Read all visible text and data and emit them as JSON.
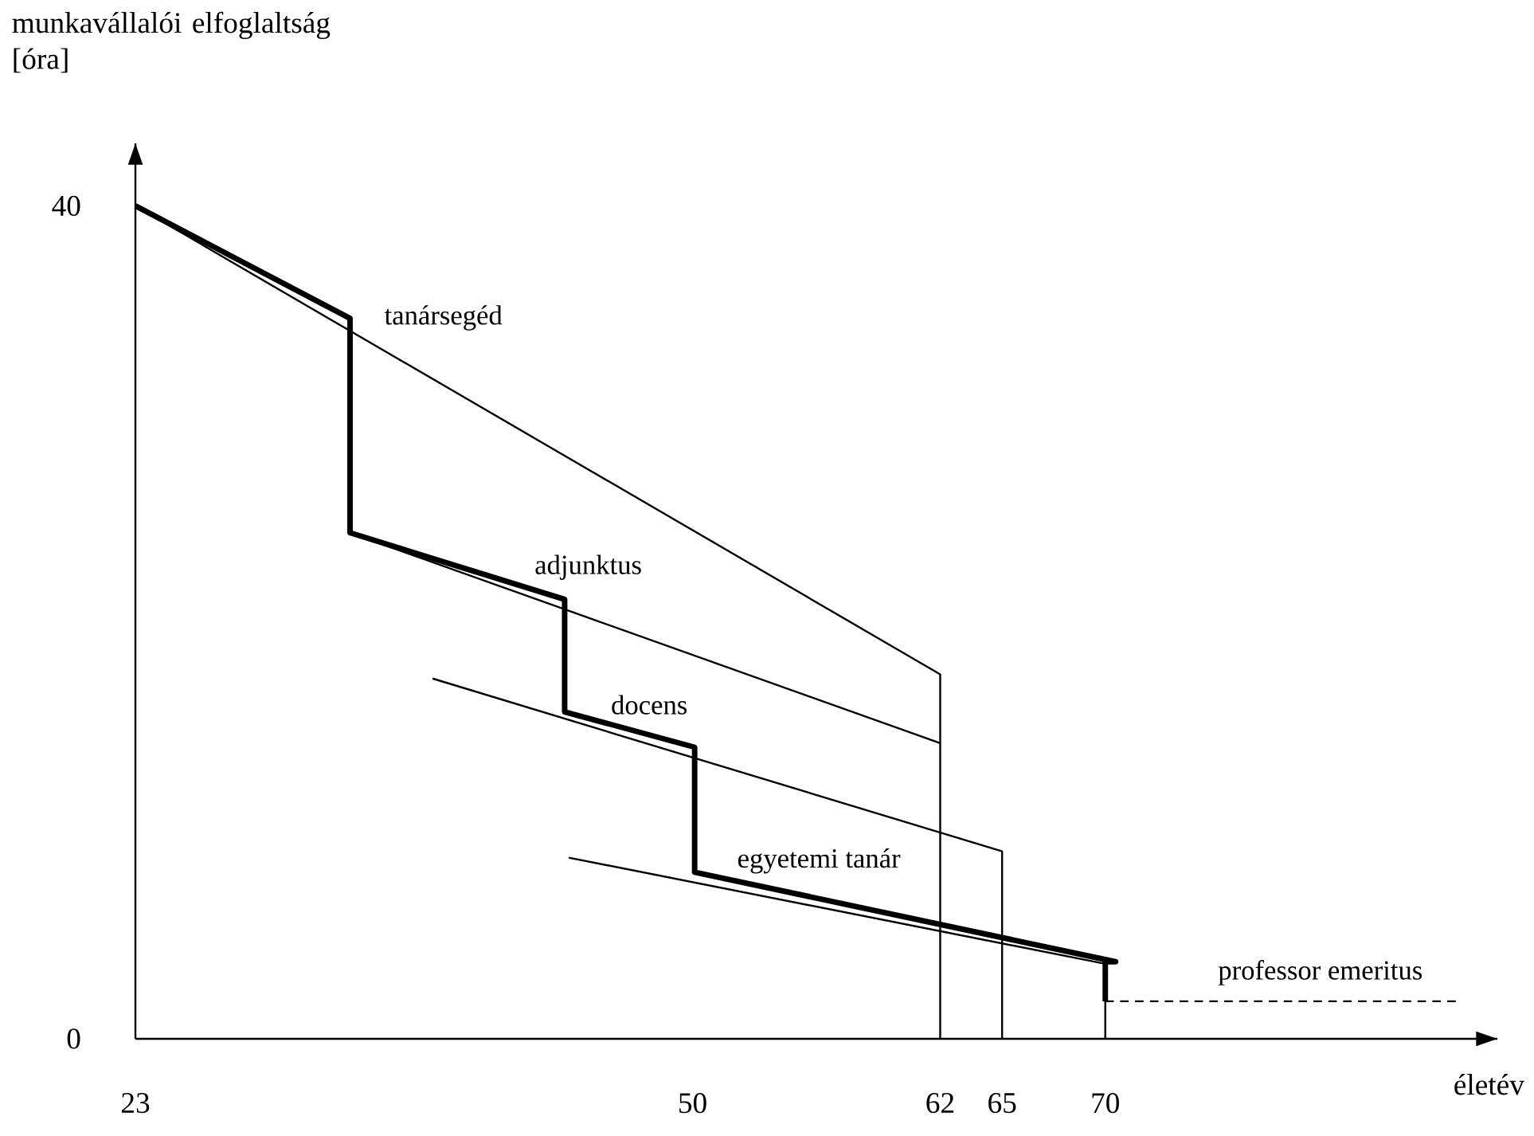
{
  "chart_data": {
    "type": "line",
    "xlabel": "életév",
    "ylabel": "munkavállalói elfoglaltság [óra]",
    "xlim": [
      23,
      89
    ],
    "ylim": [
      0,
      43
    ],
    "xticks": [
      23,
      50,
      62,
      65,
      70
    ],
    "yticks": [
      0,
      40
    ],
    "marker": "none",
    "series": [
      {
        "name": "tanársegéd",
        "color": "#000000",
        "x": [
          23,
          62,
          62
        ],
        "values": [
          40,
          17.5,
          0
        ]
      },
      {
        "name": "adjunktus",
        "color": "#000000",
        "x": [
          33.4,
          62
        ],
        "values": [
          24.3,
          14.2
        ]
      },
      {
        "name": "docens",
        "color": "#000000",
        "x": [
          37.4,
          65,
          65
        ],
        "values": [
          17.3,
          9,
          0
        ]
      },
      {
        "name": "egyetemi tanár",
        "color": "#000000",
        "x": [
          44,
          70,
          70
        ],
        "values": [
          8.7,
          3.6,
          0
        ]
      },
      {
        "color": "#000000",
        "x": [
          23,
          33.4,
          33.4,
          43.8,
          43.8,
          50.1,
          50.1,
          70.5,
          70,
          70
        ],
        "values": [
          40,
          34.6,
          24.3,
          21.1,
          15.7,
          14,
          8,
          3.7,
          3.7,
          1.8
        ]
      },
      {
        "name": "professor emeritus",
        "color": "#000000",
        "line_style": "dashed",
        "x": [
          70,
          87
        ],
        "values": [
          1.8,
          1.8
        ]
      }
    ]
  }
}
